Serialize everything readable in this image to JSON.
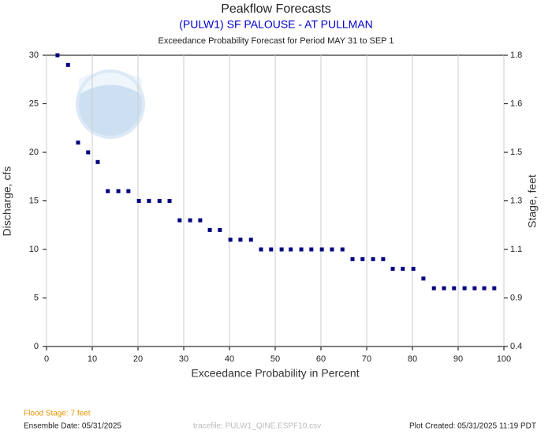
{
  "chart_data": {
    "type": "scatter",
    "title": "Peakflow Forecasts",
    "subtitle": "(PULW1) SF PALOUSE - AT PULLMAN",
    "description": "Exceedance Probability Forecast for Period MAY 31 to SEP 1",
    "x_label": "Exceedance Probability in Percent",
    "y_label": "Discharge, cfs",
    "y2_label": "Stage, feet",
    "color": "#000080",
    "grid": true,
    "xlim": [
      0,
      100
    ],
    "xticks": [
      0,
      10,
      20,
      30,
      40,
      50,
      60,
      70,
      80,
      90,
      100
    ],
    "ylim": [
      0,
      30
    ],
    "yticks": [
      0,
      5,
      10,
      15,
      20,
      25,
      30
    ],
    "y2ticks": [
      0.4,
      0.9,
      1.1,
      1.3,
      1.5,
      1.6,
      1.8
    ],
    "x": [
      2.4,
      4.7,
      6.9,
      9.1,
      11.2,
      13.4,
      15.7,
      17.9,
      20.2,
      22.4,
      24.7,
      26.9,
      29.1,
      31.4,
      33.6,
      35.7,
      37.9,
      40.2,
      42.4,
      44.7,
      46.9,
      49.1,
      51.4,
      53.4,
      55.7,
      57.9,
      60.2,
      62.4,
      64.7,
      66.9,
      69.1,
      71.4,
      73.6,
      75.7,
      77.9,
      80.2,
      82.4,
      84.7,
      86.9,
      89.1,
      91.4,
      93.6,
      95.7,
      97.9
    ],
    "values": [
      30,
      29,
      21,
      20,
      19,
      16,
      16,
      16,
      15,
      15,
      15,
      15,
      13,
      13,
      13,
      12,
      12,
      11,
      11,
      11,
      10,
      10,
      10,
      10,
      10,
      10,
      10,
      10,
      10,
      9,
      9,
      9,
      9,
      8,
      8,
      8,
      7,
      6,
      6,
      6,
      6,
      6,
      6,
      6
    ],
    "footer": {
      "flood_stage": "Flood Stage: 7 feet",
      "ensemble_date": "Ensemble Date: 05/31/2025",
      "tracefile": "tracefile: PULW1_QINE.ESPF10.csv",
      "plot_created": "Plot Created: 05/31/2025 11:19 PDT"
    }
  }
}
